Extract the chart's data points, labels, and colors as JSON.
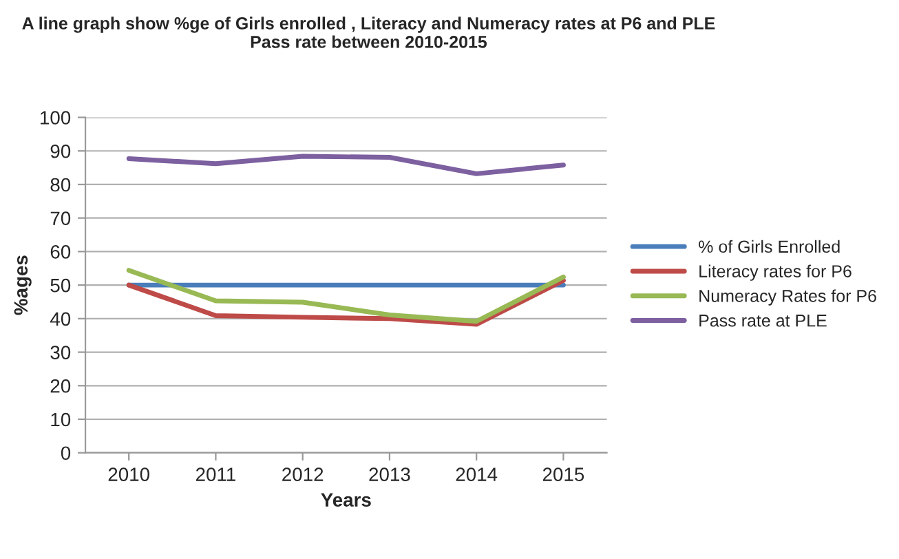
{
  "chart_data": {
    "type": "line",
    "title": "A line graph show %ge of Girls enrolled , Literacy and Numeracy rates at P6 and PLE Pass rate between 2010-2015",
    "xlabel": "Years",
    "ylabel": "%ages",
    "categories": [
      "2010",
      "2011",
      "2012",
      "2013",
      "2014",
      "2015"
    ],
    "series": [
      {
        "name": "% of Girls Enrolled",
        "color": "#4a7ebb",
        "values": [
          50,
          50,
          50,
          50,
          50,
          50
        ]
      },
      {
        "name": "Literacy rates for P6",
        "color": "#be4b48",
        "values": [
          50,
          40.9,
          40.4,
          40,
          38.3,
          51.4
        ]
      },
      {
        "name": "Numeracy Rates for P6",
        "color": "#98b954",
        "values": [
          54.4,
          45.3,
          44.9,
          41.1,
          39.2,
          52.4
        ]
      },
      {
        "name": "Pass rate at PLE",
        "color": "#7d60a0",
        "values": [
          87.7,
          86.2,
          88.4,
          88.1,
          83.2,
          85.8
        ]
      }
    ],
    "ylim": [
      0,
      100
    ],
    "yticks": [
      0,
      10,
      20,
      30,
      40,
      50,
      60,
      70,
      80,
      90,
      100
    ],
    "grid": "y",
    "legend": "right",
    "marker": "none",
    "line_style": "solid"
  }
}
